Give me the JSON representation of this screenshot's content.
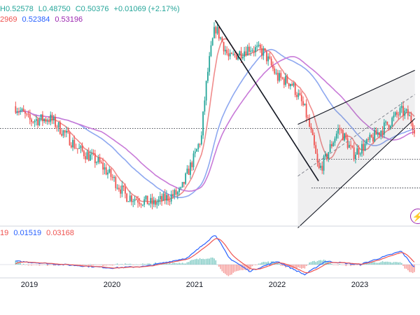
{
  "legend": {
    "ohlc": [
      {
        "text": "H0.52578"
      },
      {
        "text": "L0.48750"
      },
      {
        "text": "C0.50376"
      },
      {
        "text": "+0.01069 (+2.17%)"
      }
    ],
    "ma": [
      {
        "text": "2969",
        "color": "#ef5350"
      },
      {
        "text": "0.52384",
        "color": "#2962ff"
      },
      {
        "text": "0.53196",
        "color": "#9c27b0"
      }
    ],
    "macd": [
      {
        "text": "19",
        "color": "#ef5350"
      },
      {
        "text": "0.01519",
        "color": "#2962ff"
      },
      {
        "text": "0.03168",
        "color": "#ef5350"
      }
    ]
  },
  "colors": {
    "up": "#26a69a",
    "down": "#ef5350",
    "ma_fast": "#f08c8c",
    "ma_mid": "#8ea8f0",
    "ma_slow": "#c87ad8",
    "macd_line": "#2962ff",
    "signal_line": "#ef5350"
  },
  "chart_data": {
    "type": "line",
    "subtype": "candlestick",
    "x_ticks": [
      "2019",
      "2020",
      "2021",
      "2022",
      "2023"
    ],
    "price_anchors": {
      "x": [
        "2018-11",
        "2019-01",
        "2019-04",
        "2019-08",
        "2019-11",
        "2020-03",
        "2020-07",
        "2020-11",
        "2021-01",
        "2021-02",
        "2021-04",
        "2021-06",
        "2021-09",
        "2021-11",
        "2022-01",
        "2022-03",
        "2022-05",
        "2022-07",
        "2022-08",
        "2022-10",
        "2022-12",
        "2023-02",
        "2023-05",
        "2023-07",
        "2023-08",
        "2023-09"
      ],
      "y": [
        0.62,
        0.54,
        0.55,
        0.41,
        0.36,
        0.26,
        0.24,
        0.27,
        0.38,
        0.46,
        1.34,
        0.98,
        1.1,
        1.05,
        0.82,
        0.78,
        0.6,
        0.33,
        0.37,
        0.5,
        0.39,
        0.43,
        0.52,
        0.59,
        0.57,
        0.5
      ]
    },
    "trendlines": [
      {
        "name": "descending",
        "from": [
          "2021-04",
          1.43
        ],
        "to": [
          "2022-07",
          0.3
        ]
      },
      {
        "name": "channel-upper",
        "from": [
          "2022-04",
          0.52
        ],
        "to": [
          "2023-09",
          0.88
        ]
      },
      {
        "name": "channel-lower",
        "from": [
          "2022-04",
          0.19
        ],
        "to": [
          "2023-09",
          0.55
        ]
      }
    ],
    "horizontal_levels": [
      0.5,
      0.37,
      0.28
    ],
    "macd_histogram_anchors": {
      "x": [
        "2018-11",
        "2019-06",
        "2020-01",
        "2020-06",
        "2020-12",
        "2021-04",
        "2021-06",
        "2021-09",
        "2022-01",
        "2022-05",
        "2022-08",
        "2023-01",
        "2023-07",
        "2023-09"
      ],
      "y": [
        0.01,
        0.0,
        -0.01,
        -0.005,
        0.02,
        0.09,
        0.02,
        -0.02,
        0.01,
        -0.03,
        0.01,
        0.0,
        0.04,
        -0.01
      ]
    },
    "grid": false
  }
}
